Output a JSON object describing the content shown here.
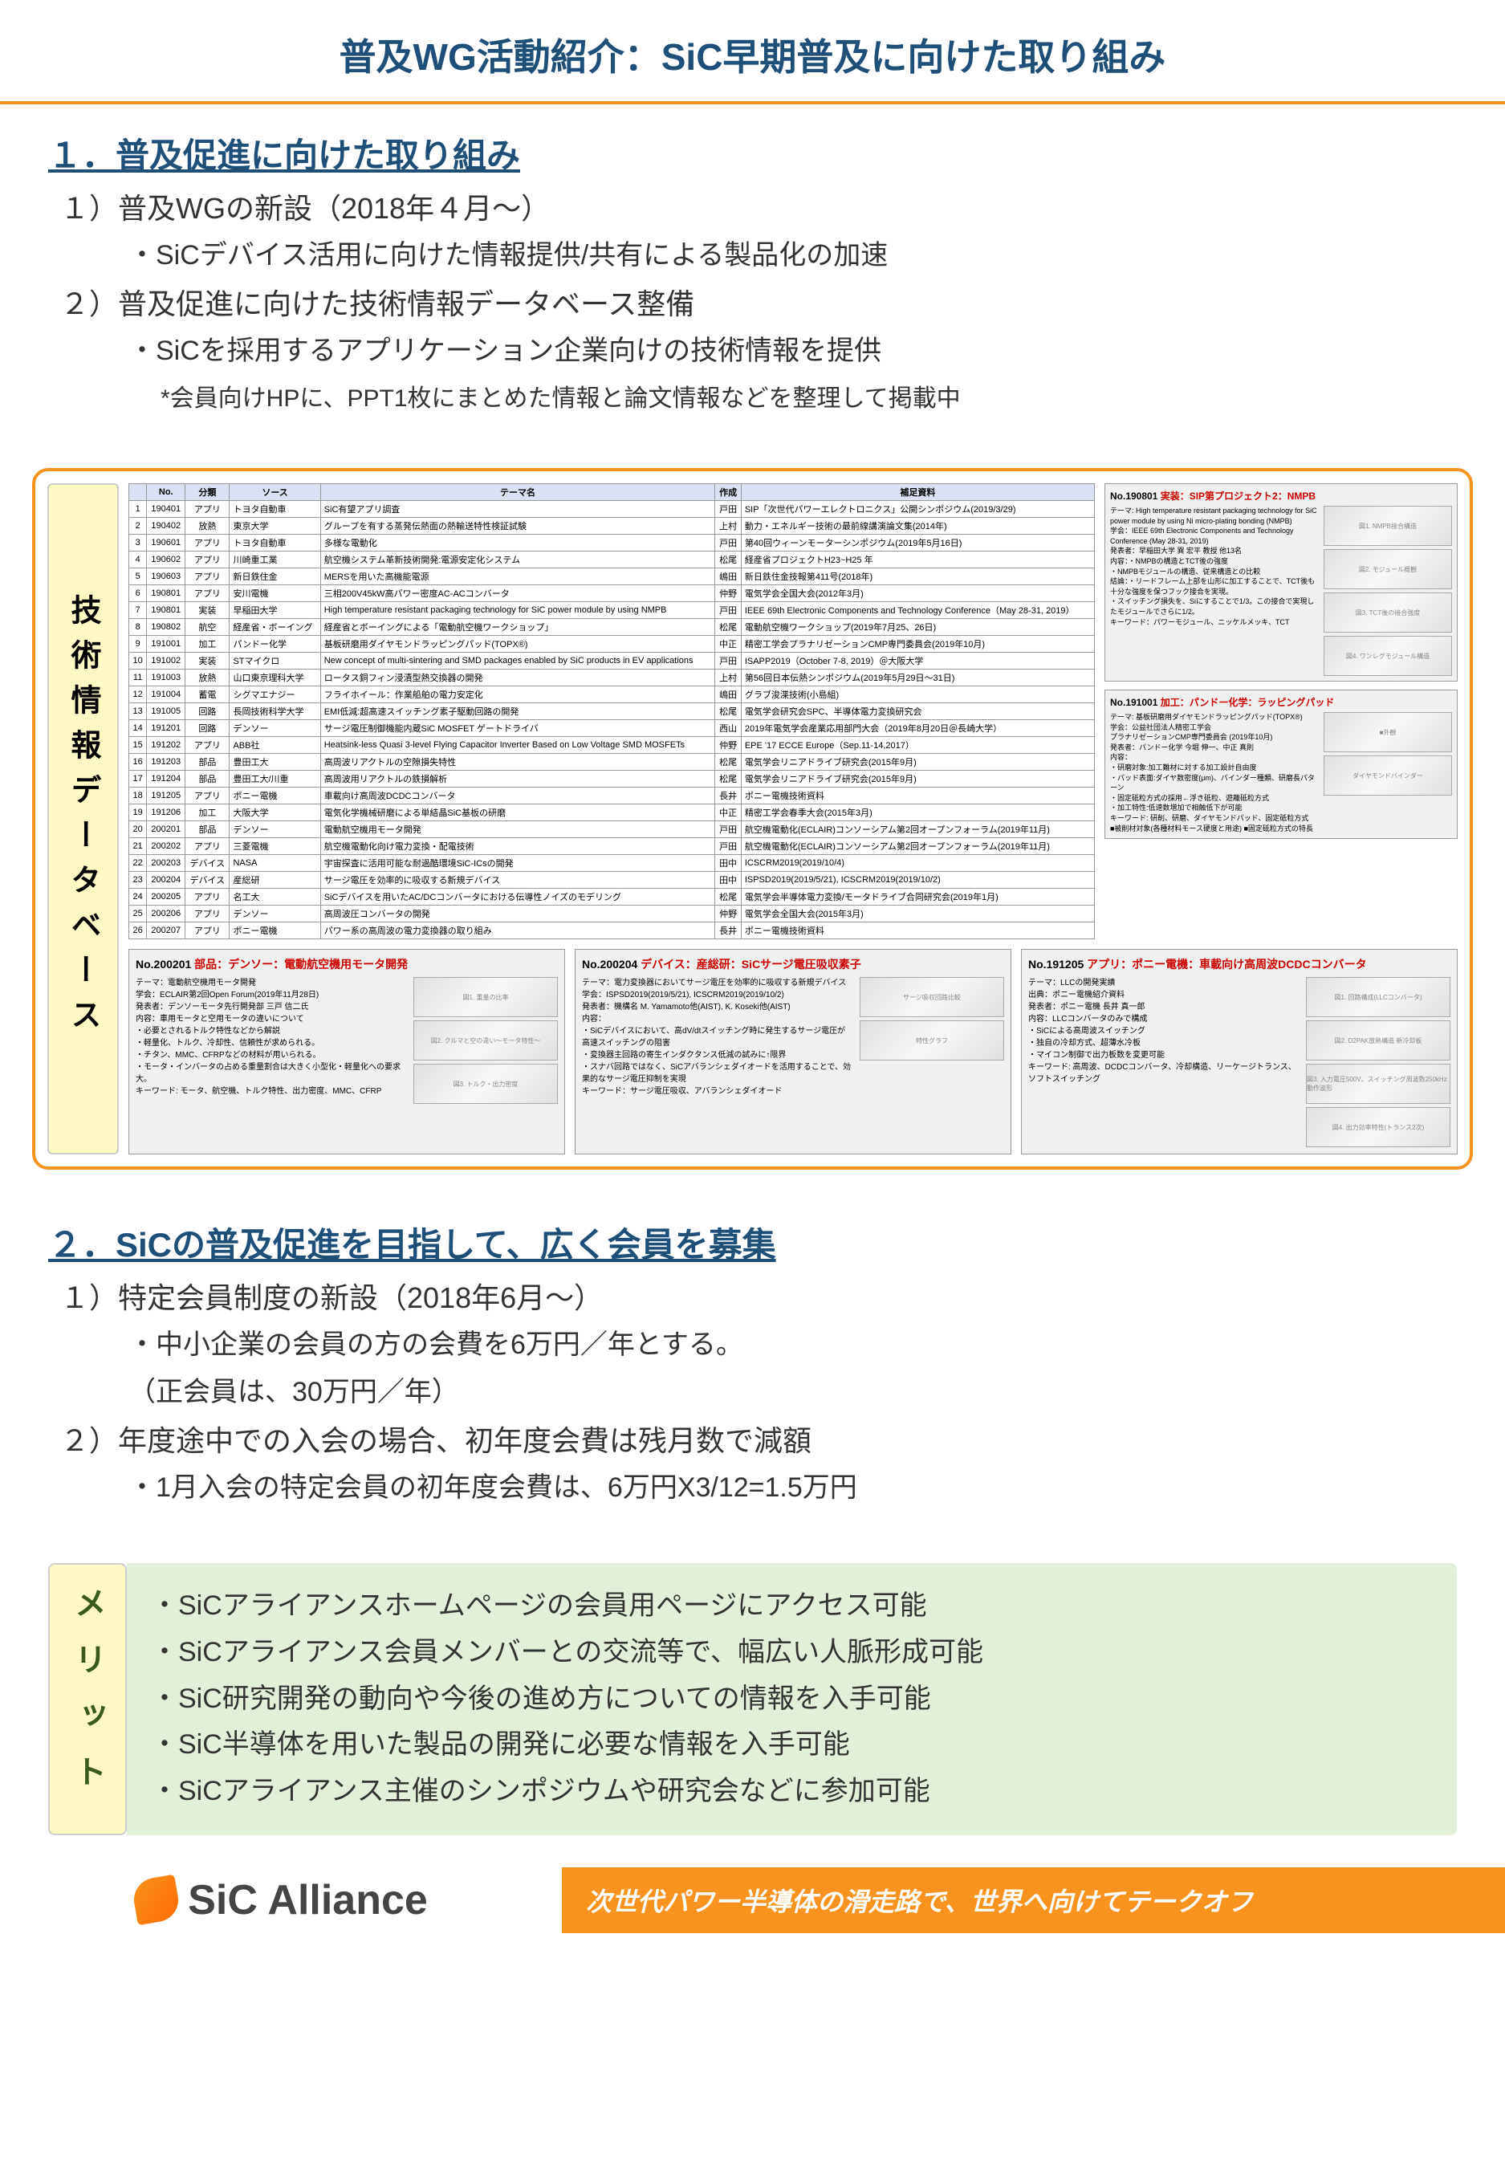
{
  "title": "普及WG活動紹介：SiC早期普及に向けた取り組み",
  "section1": {
    "heading": "１．普及促進に向けた取り組み",
    "item1": "１）普及WGの新設（2018年４月～）",
    "item1_detail": "・SiCデバイス活用に向けた情報提供/共有による製品化の加速",
    "item2": "２）普及促進に向けた技術情報データベース整備",
    "item2_detail": "・SiCを採用するアプリケーション企業向けの技術情報を提供",
    "item2_note": "*会員向けHPに、PPT1枚にまとめた情報と論文情報などを整理して掲載中"
  },
  "db_label": "技術情報データベース",
  "db_table": {
    "headers": [
      "",
      "No.",
      "分類",
      "ソース",
      "テーマ名",
      "作成",
      "補足資料"
    ],
    "rows": [
      [
        "1",
        "190401",
        "アプリ",
        "トヨタ自動車",
        "SiC有望アプリ調査",
        "戸田",
        "SIP「次世代パワーエレクトロニクス」公開シンポジウム(2019/3/29)"
      ],
      [
        "2",
        "190402",
        "放熱",
        "東京大学",
        "グループを有する蒸発伝熱面の熱輸送特性検証試験",
        "上村",
        "動力・エネルギー技術の最前線講演論文集(2014年)"
      ],
      [
        "3",
        "190601",
        "アプリ",
        "トヨタ自動車",
        "多様な電動化",
        "戸田",
        "第40回ウィーンモーターシンポジウム(2019年5月16日)"
      ],
      [
        "4",
        "190602",
        "アプリ",
        "川崎重工業",
        "航空機システム革新技術開発:電源安定化システム",
        "松尾",
        "経産省プロジェクトH23~H25 年"
      ],
      [
        "5",
        "190603",
        "アプリ",
        "新日鉄住金",
        "MERSを用いた高機能電源",
        "嶋田",
        "新日鉄住金技報第411号(2018年)"
      ],
      [
        "6",
        "190801",
        "アプリ",
        "安川電機",
        "三相200V45kW高パワー密度AC-ACコンバータ",
        "仲野",
        "電気学会全国大会(2012年3月)"
      ],
      [
        "7",
        "190801",
        "実装",
        "早稲田大学",
        "High temperature resistant packaging technology for SiC power module by using NMPB",
        "戸田",
        "IEEE 69th Electronic Components and Technology Conference（May 28-31, 2019）"
      ],
      [
        "8",
        "190802",
        "航空",
        "経産省・ボーイング",
        "経産省とボーイングによる「電動航空機ワークショップ」",
        "松尾",
        "電動航空機ワークショップ(2019年7月25、26日)"
      ],
      [
        "9",
        "191001",
        "加工",
        "パンドー化学",
        "基板研磨用ダイヤモンドラッピングパッド(TOPX®)",
        "中正",
        "精密工学会プラナリゼーションCMP専門委員会(2019年10月)"
      ],
      [
        "10",
        "191002",
        "実装",
        "STマイクロ",
        "New concept of multi-sintering and SMD packages enabled by SiC products in EV applications",
        "戸田",
        "ISAPP2019（October 7-8, 2019）＠大阪大学"
      ],
      [
        "11",
        "191003",
        "放熱",
        "山口東京理科大学",
        "ロータス銅フィン浸漬型熱交換器の開発",
        "上村",
        "第56回日本伝熱シンポジウム(2019年5月29日～31日)"
      ],
      [
        "12",
        "191004",
        "蓄電",
        "シグマエナジー",
        "フライホイール：作業船舶の電力安定化",
        "嶋田",
        "グラブ浚渫技術(小島組)"
      ],
      [
        "13",
        "191005",
        "回路",
        "長岡技術科学大学",
        "EMI低減:超高速スイッチング素子駆動回路の開発",
        "松尾",
        "電気学会研究会SPC、半導体電力変換研究会"
      ],
      [
        "14",
        "191201",
        "回路",
        "デンソー",
        "サージ電圧制御機能内蔵SiC MOSFET ゲートドライバ",
        "西山",
        "2019年電気学会産業応用部門大会（2019年8月20日＠長崎大学）"
      ],
      [
        "15",
        "191202",
        "アプリ",
        "ABB社",
        "Heatsink-less Quasi 3-level Flying Capacitor Inverter Based on Low Voltage SMD MOSFETs",
        "仲野",
        "EPE '17 ECCE Europe（Sep.11-14,2017）"
      ],
      [
        "16",
        "191203",
        "部品",
        "豊田工大",
        "高周波リアクトルの空隙損失特性",
        "松尾",
        "電気学会リニアドライブ研究会(2015年9月)"
      ],
      [
        "17",
        "191204",
        "部品",
        "豊田工大/川重",
        "高周波用リアクトルの鉄損解析",
        "松尾",
        "電気学会リニアドライブ研究会(2015年9月)"
      ],
      [
        "18",
        "191205",
        "アプリ",
        "ポニー電機",
        "車載向け高周波DCDCコンバータ",
        "長井",
        "ポニー電機技術資料"
      ],
      [
        "19",
        "191206",
        "加工",
        "大阪大学",
        "電気化学機械研磨による単結晶SiC基板の研磨",
        "中正",
        "精密工学会春季大会(2015年3月)"
      ],
      [
        "20",
        "200201",
        "部品",
        "デンソー",
        "電動航空機用モータ開発",
        "戸田",
        "航空機電動化(ECLAIR)コンソーシアム第2回オープンフォーラム(2019年11月)"
      ],
      [
        "21",
        "200202",
        "アプリ",
        "三菱電機",
        "航空機電動化向け電力変換・配電技術",
        "戸田",
        "航空機電動化(ECLAIR)コンソーシアム第2回オープンフォーラム(2019年11月)"
      ],
      [
        "22",
        "200203",
        "デバイス",
        "NASA",
        "宇宙探査に活用可能な耐過酷環境SiC-ICsの開発",
        "田中",
        "ICSCRM2019(2019/10/4)"
      ],
      [
        "23",
        "200204",
        "デバイス",
        "産総研",
        "サージ電圧を効率的に吸収する新規デバイス",
        "田中",
        "ISPSD2019(2019/5/21), ICSCRM2019(2019/10/2)"
      ],
      [
        "24",
        "200205",
        "アプリ",
        "名工大",
        "SiCデバイスを用いたAC/DCコンバータにおける伝導性ノイズのモデリング",
        "松尾",
        "電気学会半導体電力変換/モータドライブ合同研究会(2019年1月)"
      ],
      [
        "25",
        "200206",
        "アプリ",
        "デンソー",
        "高周波圧コンバータの開発",
        "仲野",
        "電気学会全国大会(2015年3月)"
      ],
      [
        "26",
        "200207",
        "アプリ",
        "ポニー電機",
        "パワー系の高周波の電力変換器の取り組み",
        "長井",
        "ポニー電機技術資料"
      ]
    ]
  },
  "side_cards": [
    {
      "no": "No.190801",
      "title": "実装：SIP第プロジェクト2：NMPB",
      "text": "テーマ: High temperature resistant packaging technology for SiC power module by using Ni micro-plating bonding (NMPB)\n学会：IEEE 69th Electronic Components and Technology Conference (May 28-31, 2019)\n発表者：早稲田大学 巽 宏平 教授 他13名\n内容：・NMPBの構造とTCT後の強度\n・NMPBモジュールの構造、従来構造との比較\n結論：・リードフレーム上部を山形に加工することで、TCT後も十分な強度を保つフック接合を実現。\n・スイッチング損失を、Siにすることで1/3。この接合で実現したモジュールでさらに1/2。\nキーワード：パワーモジュール、ニッケルメッキ、TCT",
      "imgs": [
        "図1. NMPB接合構造",
        "図2. モジュール概観",
        "図3. TCT後の接合強度",
        "図4. ワンレグモジュール構造"
      ]
    },
    {
      "no": "No.191001",
      "title": "加工：パンドー化学：ラッピングパッド",
      "text": "テーマ: 基板研磨用ダイヤモンドラッピングパッド(TOPX®)\n学会：公益社団法人精密工学会\nプラナリゼーションCMP専門委員会 (2019年10月)\n発表者：パンドー化学 今堀 伸一、中正 真則\n内容：\n・研磨対象:加工難材に対する加工設計自由度\n・パッド表面:ダイヤ数密度(μm)、バインダー種類、研磨長パターン\n・固定砥粒方式の採用←浮き砥粒、遊離砥粒方式\n・加工特性:低速数増加で相触低下が可能\nキーワード: 研削、研磨、ダイヤモンドパッド、固定砥粒方式\n■被削材対象(各種材料モース硬度と用途) ■固定砥粒方式の特長",
      "imgs": [
        "■外観",
        "ダイヤモンドバインダー"
      ]
    }
  ],
  "bottom_cards": [
    {
      "no": "No.200201",
      "title": "部品：デンソー：電動航空機用モータ開発",
      "text": "テーマ：電動航空機用モータ開発\n学会：ECLAIR第2回Open Forum(2019年11月28日)\n発表者：デンソーモータ先行開発部 三戸 信二氏\n内容：車用モータと空用モータの違いについて\n・必要とされるトルク特性などから解説\n・軽量化、トルク、冷却性、信頼性が求められる。\n・チタン、MMC、CFRPなどの材料が用いられる。\n・モータ・インバータの占める重量割合は大きく小型化・軽量化への要求大。\nキーワード: モータ、航空機、トルク特性、出力密度、MMC、CFRP",
      "imgs": [
        "図1. 重量の比率",
        "図2. クルマと空の違い～モータ特性～",
        "図3. トルク・出力密度"
      ]
    },
    {
      "no": "No.200204",
      "title": "デバイス：産総研：SiCサージ電圧吸収素子",
      "text": "テーマ：電力変換器においてサージ電圧を効率的に吸収する新規デバイス\n学会：ISPSD2019(2019/5/21), ICSCRM2019(2019/10/2)\n発表者：機構名 M. Yamamoto他(AIST), K. Koseki他(AIST)\n内容：\n・SiCデバイスにおいて、高dV/dtスイッチング時に発生するサージ電圧が高速スイッチングの阻害\n・変換器主回路の寄生インダクタンス低減の試みに↑限界\n・スナバ回路ではなく、SiCアバランシェダイオードを活用することで、効果的なサージ電圧抑制を実現\nキーワード：サージ電圧吸収、アバランシェダイオード",
      "imgs": [
        "サージ吸収回路比較",
        "特性グラフ"
      ]
    },
    {
      "no": "No.191205",
      "title": "アプリ：ポニー電機：車載向け高周波DCDCコンバータ",
      "text": "テーマ：LLCの開発実績\n出典：ポニー電機紹介資料\n発表者：ポニー電機 長井 真一郎\n内容：LLCコンバータのみで構成\n・SiCによる高周波スイッチング\n・独自の冷却方式、超薄水冷板\n・マイコン制御で出力板数を変更可能\nキーワード: 高周波、DCDCコンバータ、冷却構造、リーケージトランス、ソフトスイッチング",
      "imgs": [
        "図1. 回路構成(LLCコンバータ)",
        "図2. D2PAK放熱構造 新冷却板",
        "図3. 入力電圧500V、スイッチング周波数250kHz 動作波形",
        "図4. 出力効率特性(トランス2次)"
      ]
    }
  ],
  "section2": {
    "heading": "２．SiCの普及促進を目指して、広く会員を募集",
    "item1": "１）特定会員制度の新設（2018年6月～）",
    "item1_detail1": "・中小企業の会員の方の会費を6万円／年とする。",
    "item1_detail2": "（正会員は、30万円／年）",
    "item2": "２）年度途中での入会の場合、初年度会費は残月数で減額",
    "item2_detail": "・1月入会の特定会員の初年度会費は、6万円X3/12=1.5万円"
  },
  "merit": {
    "label": "メリット",
    "items": [
      "・SiCアライアンスホームページの会員用ページにアクセス可能",
      "・SiCアライアンス会員メンバーとの交流等で、幅広い人脈形成可能",
      "・SiC研究開発の動向や今後の進め方についての情報を入手可能",
      "・SiC半導体を用いた製品の開発に必要な情報を入手可能",
      "・SiCアライアンス主催のシンポジウムや研究会などに参加可能"
    ]
  },
  "footer": {
    "logo": "SiC Alliance",
    "tagline": "次世代パワー半導体の滑走路で、世界へ向けてテークオフ"
  }
}
